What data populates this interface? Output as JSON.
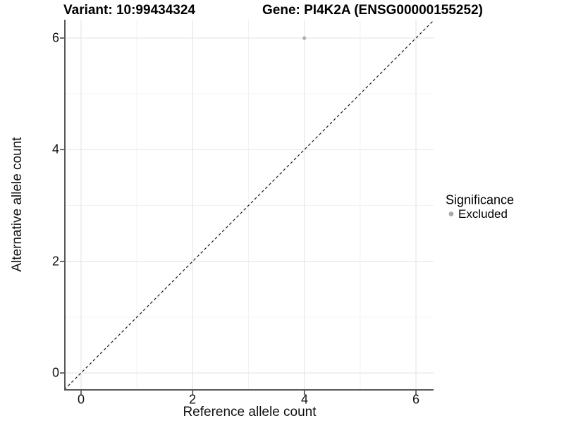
{
  "titles": {
    "variant": "Variant: 10:99434324",
    "gene": "Gene: PI4K2A (ENSG00000155252)"
  },
  "chart_data": {
    "type": "scatter",
    "title_left": "Variant: 10:99434324",
    "title_right": "Gene: PI4K2A (ENSG00000155252)",
    "xlabel": "Reference allele count",
    "ylabel": "Alternative allele count",
    "xlim": [
      -0.3,
      6.3
    ],
    "ylim": [
      -0.3,
      6.3
    ],
    "x_ticks": [
      0,
      2,
      4,
      6
    ],
    "y_ticks": [
      0,
      2,
      4,
      6
    ],
    "minor_gridlines": [
      1,
      3,
      5
    ],
    "grid": true,
    "identity_line": {
      "linetype": "dashed",
      "slope": 1,
      "intercept": 0
    },
    "series": [
      {
        "name": "Excluded",
        "color": "#b0b0b0",
        "points": [
          [
            4,
            6
          ]
        ]
      }
    ],
    "legend": {
      "title": "Significance",
      "position": "right",
      "entries": [
        {
          "label": "Excluded",
          "color": "#a9a9a9"
        }
      ]
    }
  },
  "colors": {
    "point": "#a9a9a9",
    "grid_major": "#e7e7e7",
    "grid_minor": "#f2f2f2",
    "axis_line": "#585858",
    "tick_mark": "#3f3f3f",
    "dashed_line": "#1a1a1a",
    "background": "#ffffff"
  }
}
